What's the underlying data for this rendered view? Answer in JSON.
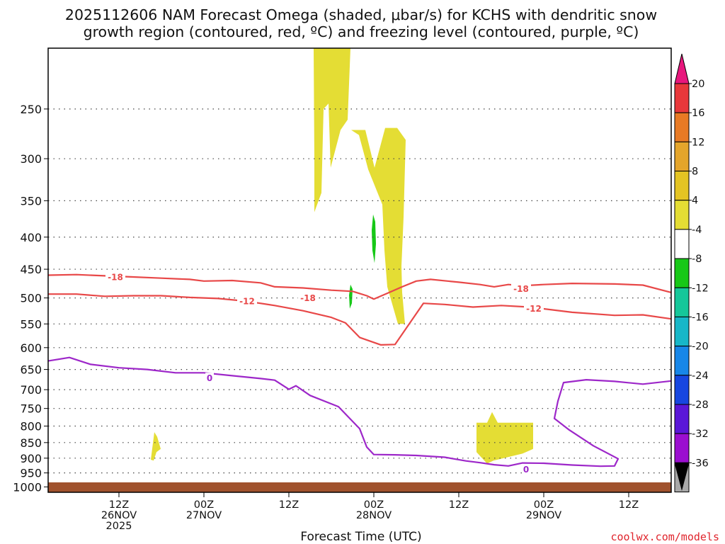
{
  "chart_data": {
    "type": "contour",
    "title_lines": [
      "2025112606 NAM Forecast Omega (shaded, μbar/s) for KCHS with dendritic snow",
      "growth region (contoured, red, ºC) and freezing level (contoured, purple, ºC)"
    ],
    "xlabel": "Forecast Time (UTC)",
    "ylabel": "",
    "credit": "coolwx.com/models",
    "x_range_hours": [
      -4,
      84
    ],
    "y_range_hpa": [
      200,
      1020
    ],
    "y_ticks": [
      {
        "value": 250,
        "label": "250"
      },
      {
        "value": 300,
        "label": "300"
      },
      {
        "value": 350,
        "label": "350"
      },
      {
        "value": 400,
        "label": "400"
      },
      {
        "value": 450,
        "label": "450"
      },
      {
        "value": 500,
        "label": "500"
      },
      {
        "value": 550,
        "label": "550"
      },
      {
        "value": 600,
        "label": "600"
      },
      {
        "value": 650,
        "label": "650"
      },
      {
        "value": 700,
        "label": "700"
      },
      {
        "value": 750,
        "label": "750"
      },
      {
        "value": 800,
        "label": "800"
      },
      {
        "value": 850,
        "label": "850"
      },
      {
        "value": 900,
        "label": "900"
      },
      {
        "value": 950,
        "label": "950"
      },
      {
        "value": 1000,
        "label": "1000"
      }
    ],
    "x_ticks": [
      {
        "hour": 6,
        "lines": [
          "12Z",
          "26NOV",
          "2025"
        ]
      },
      {
        "hour": 18,
        "lines": [
          "00Z",
          "27NOV"
        ]
      },
      {
        "hour": 30,
        "lines": [
          "12Z"
        ]
      },
      {
        "hour": 42,
        "lines": [
          "00Z",
          "28NOV"
        ]
      },
      {
        "hour": 54,
        "lines": [
          "12Z"
        ]
      },
      {
        "hour": 66,
        "lines": [
          "00Z",
          "29NOV"
        ]
      },
      {
        "hour": 78,
        "lines": [
          "12Z"
        ]
      }
    ],
    "colorbar": {
      "labels": [
        "20",
        "16",
        "12",
        "8",
        "4",
        "-4",
        "-8",
        "-12",
        "-16",
        "-20",
        "-24",
        "-28",
        "-32",
        "-36"
      ],
      "colors": [
        "#e8177d",
        "#e8383b",
        "#e87a24",
        "#e4a52b",
        "#e4c423",
        "#e4dd34",
        "#ffffff",
        "#17c817",
        "#15c79a",
        "#17b7c8",
        "#1787e8",
        "#1747e0",
        "#5a17d8",
        "#9b0fd0",
        "#a8a8a8",
        "#000000"
      ]
    },
    "contours": [
      {
        "name": "-18 C isotherm",
        "color": "#e84848",
        "label": "-18",
        "label_points": [
          [
            5.5,
            463
          ],
          [
            32.7,
            500
          ],
          [
            62.8,
            483
          ]
        ],
        "points": [
          [
            -4,
            460
          ],
          [
            0,
            459
          ],
          [
            4,
            461
          ],
          [
            8,
            463
          ],
          [
            12,
            465
          ],
          [
            16,
            467
          ],
          [
            18,
            470
          ],
          [
            22,
            469
          ],
          [
            26,
            473
          ],
          [
            28,
            480
          ],
          [
            32,
            482
          ],
          [
            36,
            486
          ],
          [
            39,
            488
          ],
          [
            41,
            496
          ],
          [
            42,
            502
          ],
          [
            44,
            491
          ],
          [
            46,
            480
          ],
          [
            48,
            470
          ],
          [
            50,
            467
          ],
          [
            54,
            472
          ],
          [
            57,
            476
          ],
          [
            59,
            480
          ],
          [
            61,
            476
          ],
          [
            63,
            478
          ],
          [
            66,
            476
          ],
          [
            70,
            474
          ],
          [
            76,
            475
          ],
          [
            80,
            477
          ],
          [
            84,
            490
          ]
        ]
      },
      {
        "name": "-12 C isotherm",
        "color": "#e84848",
        "label": "-12",
        "label_points": [
          [
            24.1,
            506
          ],
          [
            64.6,
            520
          ]
        ],
        "points": [
          [
            -4,
            493
          ],
          [
            0,
            493
          ],
          [
            4,
            497
          ],
          [
            8,
            496
          ],
          [
            12,
            496
          ],
          [
            16,
            499
          ],
          [
            20,
            501
          ],
          [
            24,
            506
          ],
          [
            28,
            514
          ],
          [
            32,
            524
          ],
          [
            36,
            537
          ],
          [
            38,
            548
          ],
          [
            40,
            578
          ],
          [
            43,
            594
          ],
          [
            45,
            593
          ],
          [
            47,
            550
          ],
          [
            49,
            510
          ],
          [
            52,
            512
          ],
          [
            56,
            517
          ],
          [
            60,
            514
          ],
          [
            64,
            517
          ],
          [
            70,
            527
          ],
          [
            76,
            533
          ],
          [
            80,
            532
          ],
          [
            84,
            540
          ]
        ]
      },
      {
        "name": "0 C freezing level",
        "color": "#9d27c9",
        "label": "0",
        "label_points": [
          [
            18.8,
            670
          ],
          [
            63.5,
            937
          ]
        ],
        "points": [
          [
            -4,
            630
          ],
          [
            -1,
            622
          ],
          [
            2,
            638
          ],
          [
            6,
            646
          ],
          [
            10,
            650
          ],
          [
            14,
            658
          ],
          [
            18,
            658
          ],
          [
            22,
            665
          ],
          [
            26,
            672
          ],
          [
            28,
            676
          ],
          [
            30,
            699
          ],
          [
            31,
            690
          ],
          [
            33,
            715
          ],
          [
            37,
            745
          ],
          [
            40,
            808
          ],
          [
            41,
            864
          ],
          [
            42,
            888
          ],
          [
            45,
            889
          ],
          [
            48,
            891
          ],
          [
            52,
            897
          ],
          [
            55,
            909
          ],
          [
            57,
            915
          ],
          [
            59,
            922
          ],
          [
            61,
            926
          ],
          [
            63,
            916
          ],
          [
            66,
            917
          ],
          [
            70,
            923
          ],
          [
            74,
            927
          ],
          [
            76,
            926
          ],
          [
            76.5,
            902
          ],
          [
            73,
            860
          ],
          [
            69.5,
            810
          ],
          [
            67.5,
            778
          ],
          [
            68,
            730
          ],
          [
            68.8,
            682
          ],
          [
            72,
            675
          ],
          [
            76,
            679
          ],
          [
            80,
            686
          ],
          [
            84,
            678
          ]
        ]
      }
    ],
    "shaded_regions": [
      {
        "value_range": "4 to 8",
        "color": "#e4dd34",
        "points": [
          [
            33.5,
            200
          ],
          [
            38.7,
            200
          ],
          [
            38.3,
            260
          ],
          [
            37.3,
            270
          ],
          [
            35.9,
            310
          ],
          [
            35.6,
            245
          ],
          [
            34.9,
            250
          ],
          [
            34.6,
            340
          ],
          [
            33.6,
            365
          ],
          [
            33.6,
            300
          ]
        ]
      },
      {
        "value_range": "4 to 8",
        "color": "#e4dd34",
        "points": [
          [
            38.8,
            270
          ],
          [
            40.8,
            270
          ],
          [
            42.1,
            310
          ],
          [
            43.6,
            268
          ],
          [
            45.3,
            268
          ],
          [
            46.5,
            280
          ],
          [
            46.2,
            372
          ],
          [
            45.9,
            445
          ],
          [
            46.0,
            490
          ],
          [
            46.4,
            550
          ],
          [
            45.4,
            550
          ],
          [
            43.9,
            480
          ],
          [
            43.5,
            420
          ],
          [
            43.2,
            355
          ],
          [
            41.2,
            312
          ],
          [
            39.9,
            275
          ]
        ]
      },
      {
        "value_range": "4 to 8",
        "color": "#e4dd34",
        "points": [
          [
            56.5,
            790
          ],
          [
            58.0,
            790
          ],
          [
            58.7,
            760
          ],
          [
            59.5,
            790
          ],
          [
            64.5,
            790
          ],
          [
            64.5,
            870
          ],
          [
            63.0,
            885
          ],
          [
            58.9,
            908
          ],
          [
            58.0,
            918
          ],
          [
            56.5,
            880
          ]
        ]
      },
      {
        "value_range": "4 to 8",
        "color": "#e4dd34",
        "points": [
          [
            10.5,
            905
          ],
          [
            11.0,
            818
          ],
          [
            11.4,
            832
          ],
          [
            11.9,
            870
          ],
          [
            11.3,
            880
          ],
          [
            10.9,
            908
          ]
        ]
      },
      {
        "value_range": "-8 to -4",
        "color": "#17c817",
        "points": [
          [
            41.9,
            368
          ],
          [
            42.2,
            378
          ],
          [
            42.3,
            410
          ],
          [
            42.1,
            440
          ],
          [
            41.8,
            420
          ],
          [
            41.7,
            390
          ]
        ]
      },
      {
        "value_range": "-8 to -4",
        "color": "#17c817",
        "points": [
          [
            38.7,
            476
          ],
          [
            39.0,
            484
          ],
          [
            38.9,
            510
          ],
          [
            38.6,
            520
          ],
          [
            38.5,
            495
          ]
        ]
      }
    ],
    "ground": {
      "color": "#a0522d",
      "label": "terrain below ~1000 hPa"
    }
  }
}
